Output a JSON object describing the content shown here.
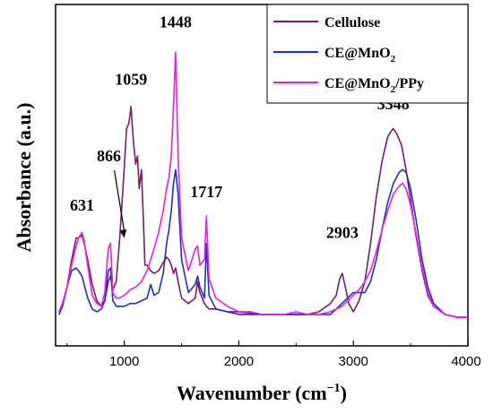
{
  "chart_data": {
    "type": "line",
    "xlabel": "Wavenumber (cm",
    "xlabel_sup": "−1",
    "xlabel_close": ")",
    "ylabel": "Absorbance (a.u.)",
    "xlim": [
      400,
      4000
    ],
    "ylim": [
      0,
      1
    ],
    "xticks": [
      1000,
      2000,
      3000,
      4000
    ],
    "yticks_shown": false,
    "legend_position": "top-right",
    "colors": {
      "Cellulose": "#7b1b6a",
      "CE@MnO2": "#1a2ee0",
      "CE@MnO2/PPy": "#ea1ee6"
    },
    "series": [
      {
        "name": "Cellulose",
        "legend_main": "Cellulose",
        "legend_sub": "",
        "legend_tail": "",
        "x": [
          430,
          460,
          500,
          540,
          580,
          600,
          630,
          650,
          680,
          720,
          760,
          800,
          830,
          860,
          880,
          900,
          930,
          960,
          1000,
          1020,
          1040,
          1059,
          1080,
          1100,
          1115,
          1130,
          1150,
          1165,
          1180,
          1200,
          1230,
          1260,
          1300,
          1340,
          1370,
          1390,
          1410,
          1430,
          1448,
          1470,
          1500,
          1560,
          1620,
          1640,
          1660,
          1700,
          1717,
          1740,
          1800,
          1900,
          2000,
          2100,
          2200,
          2300,
          2400,
          2500,
          2600,
          2700,
          2800,
          2850,
          2880,
          2903,
          2930,
          2960,
          3000,
          3050,
          3100,
          3150,
          3200,
          3250,
          3300,
          3330,
          3348,
          3380,
          3420,
          3460,
          3500,
          3550,
          3600,
          3650,
          3700,
          3800,
          3900,
          4000
        ],
        "values": [
          0.03,
          0.06,
          0.12,
          0.22,
          0.3,
          0.3,
          0.31,
          0.28,
          0.22,
          0.13,
          0.07,
          0.05,
          0.07,
          0.14,
          0.16,
          0.11,
          0.14,
          0.3,
          0.56,
          0.7,
          0.72,
          0.78,
          0.65,
          0.57,
          0.6,
          0.48,
          0.55,
          0.38,
          0.2,
          0.2,
          0.18,
          0.17,
          0.18,
          0.21,
          0.23,
          0.22,
          0.2,
          0.17,
          0.19,
          0.14,
          0.08,
          0.06,
          0.08,
          0.14,
          0.1,
          0.06,
          0.05,
          0.04,
          0.04,
          0.03,
          0.03,
          0.025,
          0.02,
          0.02,
          0.02,
          0.02,
          0.02,
          0.03,
          0.06,
          0.09,
          0.15,
          0.17,
          0.12,
          0.06,
          0.03,
          0.07,
          0.14,
          0.28,
          0.45,
          0.58,
          0.67,
          0.69,
          0.7,
          0.68,
          0.64,
          0.55,
          0.44,
          0.3,
          0.18,
          0.09,
          0.05,
          0.02,
          0.01,
          0.01
        ]
      },
      {
        "name": "CE@MnO2",
        "legend_main": "CE@MnO",
        "legend_sub": "2",
        "legend_tail": "",
        "x": [
          430,
          460,
          500,
          540,
          580,
          600,
          630,
          650,
          680,
          720,
          760,
          800,
          830,
          860,
          880,
          900,
          930,
          960,
          1000,
          1050,
          1100,
          1150,
          1200,
          1230,
          1260,
          1300,
          1340,
          1370,
          1390,
          1410,
          1430,
          1448,
          1470,
          1500,
          1560,
          1620,
          1640,
          1660,
          1700,
          1717,
          1740,
          1800,
          1900,
          2000,
          2100,
          2200,
          2300,
          2400,
          2500,
          2600,
          2700,
          2800,
          2850,
          2900,
          2950,
          3000,
          3050,
          3100,
          3150,
          3200,
          3250,
          3300,
          3350,
          3400,
          3430,
          3460,
          3500,
          3550,
          3600,
          3650,
          3700,
          3800,
          3900,
          4000
        ],
        "values": [
          0.02,
          0.05,
          0.12,
          0.18,
          0.19,
          0.18,
          0.16,
          0.13,
          0.08,
          0.04,
          0.03,
          0.04,
          0.07,
          0.18,
          0.19,
          0.07,
          0.05,
          0.05,
          0.05,
          0.06,
          0.06,
          0.07,
          0.08,
          0.13,
          0.09,
          0.1,
          0.17,
          0.28,
          0.33,
          0.4,
          0.5,
          0.55,
          0.46,
          0.22,
          0.1,
          0.13,
          0.16,
          0.12,
          0.08,
          0.28,
          0.09,
          0.04,
          0.03,
          0.02,
          0.02,
          0.02,
          0.02,
          0.02,
          0.02,
          0.02,
          0.02,
          0.02,
          0.04,
          0.06,
          0.08,
          0.1,
          0.1,
          0.1,
          0.14,
          0.22,
          0.33,
          0.43,
          0.5,
          0.54,
          0.55,
          0.54,
          0.48,
          0.36,
          0.22,
          0.12,
          0.06,
          0.02,
          0.01,
          0.01
        ]
      },
      {
        "name": "CE@MnO2/PPy",
        "legend_main": "CE@MnO",
        "legend_sub": "2",
        "legend_tail": "/PPy",
        "x": [
          430,
          460,
          500,
          540,
          580,
          600,
          630,
          650,
          680,
          720,
          760,
          800,
          830,
          860,
          880,
          900,
          930,
          960,
          1000,
          1050,
          1100,
          1150,
          1200,
          1230,
          1260,
          1300,
          1340,
          1370,
          1390,
          1410,
          1430,
          1448,
          1470,
          1500,
          1560,
          1620,
          1640,
          1660,
          1700,
          1717,
          1740,
          1800,
          1900,
          2000,
          2100,
          2200,
          2300,
          2400,
          2500,
          2600,
          2700,
          2800,
          2850,
          2900,
          2950,
          3000,
          3050,
          3100,
          3150,
          3200,
          3250,
          3300,
          3350,
          3400,
          3430,
          3460,
          3500,
          3550,
          3600,
          3650,
          3700,
          3800,
          3900,
          4000
        ],
        "values": [
          0.03,
          0.06,
          0.12,
          0.2,
          0.27,
          0.3,
          0.32,
          0.29,
          0.2,
          0.09,
          0.06,
          0.05,
          0.1,
          0.26,
          0.28,
          0.1,
          0.08,
          0.08,
          0.09,
          0.11,
          0.12,
          0.14,
          0.18,
          0.22,
          0.26,
          0.32,
          0.4,
          0.48,
          0.52,
          0.6,
          0.78,
          0.98,
          0.6,
          0.3,
          0.18,
          0.26,
          0.27,
          0.2,
          0.22,
          0.38,
          0.15,
          0.08,
          0.05,
          0.03,
          0.03,
          0.02,
          0.02,
          0.02,
          0.03,
          0.02,
          0.02,
          0.03,
          0.04,
          0.05,
          0.07,
          0.09,
          0.11,
          0.14,
          0.18,
          0.25,
          0.33,
          0.4,
          0.46,
          0.49,
          0.5,
          0.48,
          0.42,
          0.31,
          0.19,
          0.1,
          0.05,
          0.02,
          0.01,
          0.01
        ]
      }
    ],
    "annotations": [
      {
        "text": "631",
        "x": 631,
        "y": 0.4
      },
      {
        "text": "866",
        "x": 866,
        "y": 0.58
      },
      {
        "text": "1059",
        "x": 1059,
        "y": 0.86
      },
      {
        "text": "1448",
        "x": 1448,
        "y": 1.07
      },
      {
        "text": "1717",
        "x": 1717,
        "y": 0.45
      },
      {
        "text": "2903",
        "x": 2903,
        "y": 0.3
      },
      {
        "text": "3348",
        "x": 3348,
        "y": 0.77
      }
    ],
    "arrow_annotation": "866"
  }
}
